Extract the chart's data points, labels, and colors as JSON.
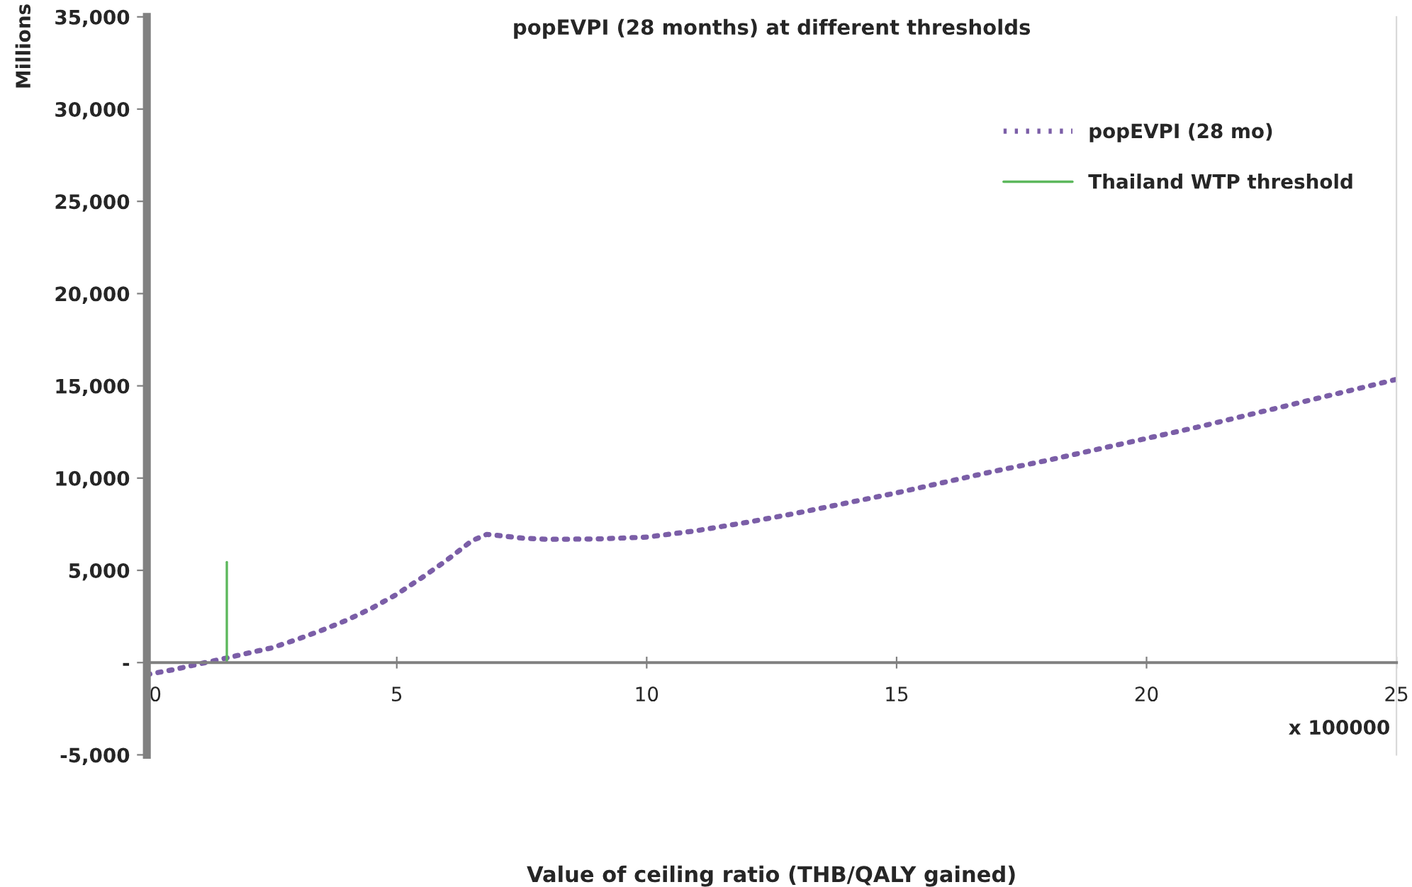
{
  "chart_data": {
    "type": "line",
    "title": "popEVPI (28 months) at different thresholds",
    "xlabel": "Value of ceiling ratio (THB/QALY gained)",
    "ylabel": "Millions",
    "annotations": [
      "x 100000"
    ],
    "x": [
      0,
      0.5,
      1,
      1.6,
      2,
      2.5,
      3,
      3.5,
      4,
      4.5,
      5,
      5.5,
      6,
      6.5,
      6.8,
      7,
      7.5,
      8,
      9,
      10,
      11,
      12,
      13,
      14,
      15,
      16,
      17,
      18,
      19,
      20,
      21,
      22,
      23,
      24,
      25
    ],
    "series": [
      {
        "name": "popEVPI (28 mo)",
        "color": "#7b5ea7",
        "line_style": "dotted",
        "values": [
          -650,
          -400,
          -100,
          250,
          500,
          800,
          1250,
          1750,
          2300,
          2950,
          3700,
          4600,
          5550,
          6600,
          6950,
          6900,
          6750,
          6680,
          6700,
          6800,
          7150,
          7600,
          8100,
          8650,
          9200,
          9800,
          10400,
          10950,
          11550,
          12150,
          12750,
          13400,
          14050,
          14700,
          15350
        ]
      },
      {
        "name": "Thailand WTP threshold",
        "color": "#5cb85c",
        "line_style": "solid",
        "x": [
          1.6,
          1.6
        ],
        "values": [
          0,
          5450
        ]
      }
    ],
    "xlim": [
      0,
      25
    ],
    "xticks": [
      0,
      5,
      10,
      15,
      20,
      25
    ],
    "ylim": [
      -5000,
      35000
    ],
    "yticks": [
      {
        "value": -5000,
        "label": "-5,000"
      },
      {
        "value": 0,
        "label": "-"
      },
      {
        "value": 5000,
        "label": "5,000"
      },
      {
        "value": 10000,
        "label": "10,000"
      },
      {
        "value": 15000,
        "label": "15,000"
      },
      {
        "value": 20000,
        "label": "20,000"
      },
      {
        "value": 25000,
        "label": "25,000"
      },
      {
        "value": 30000,
        "label": "30,000"
      },
      {
        "value": 35000,
        "label": "35,000"
      }
    ],
    "grid": false,
    "legend": "top right",
    "marker": "none"
  }
}
